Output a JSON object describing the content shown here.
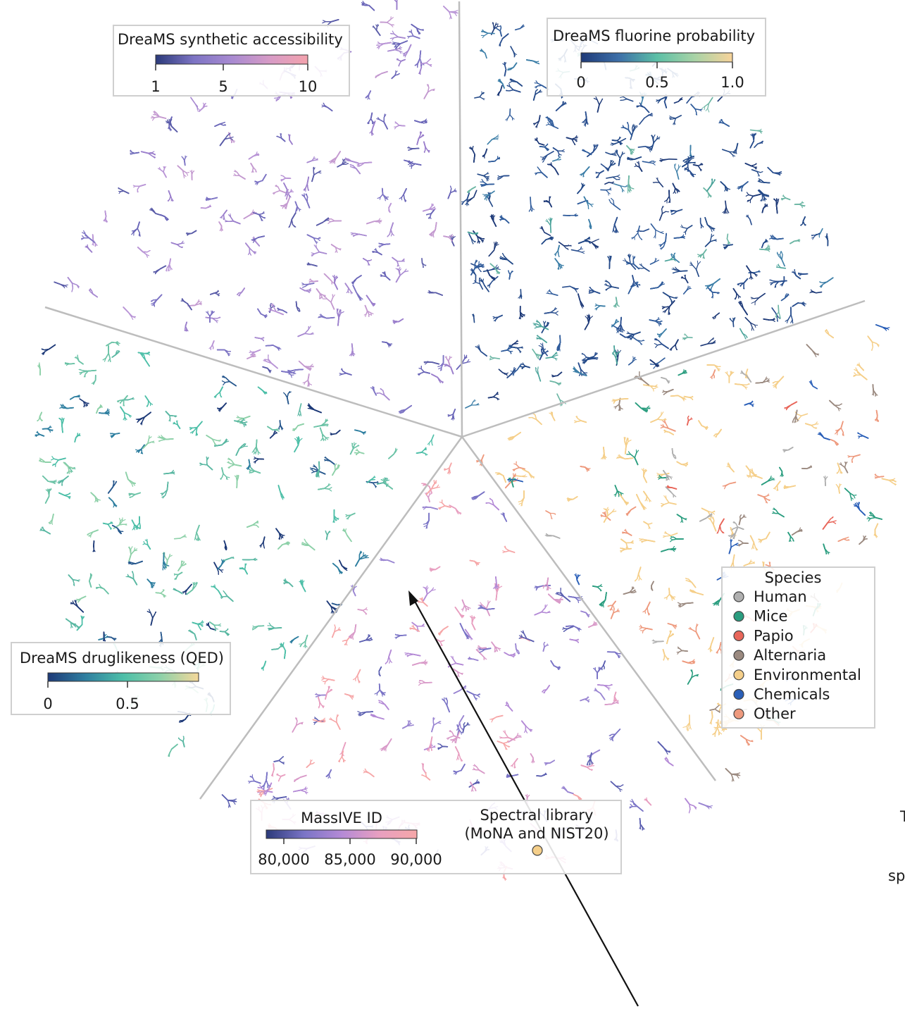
{
  "colors": {
    "synthetic_scale": [
      "#2b3a7a",
      "#7d74c4",
      "#a88ad1",
      "#d79bc6",
      "#f3a2ad"
    ],
    "fluorine_scale": [
      "#1e3a78",
      "#3d6fa8",
      "#5bbfa6",
      "#a8d3a6",
      "#f7d39a"
    ],
    "qed_scale": [
      "#1e3a78",
      "#2f7fa0",
      "#4dbfa8",
      "#8ed1a9",
      "#f5d89a"
    ],
    "massive_scale": [
      "#2b3a7a",
      "#7a74c6",
      "#b48ad6",
      "#e89fc0",
      "#f6a7a8"
    ],
    "divider": "#bdbdbd"
  },
  "legends": {
    "synthetic": {
      "title": "DreaMS synthetic accessibility",
      "ticks": [
        "1",
        "5",
        "10"
      ]
    },
    "fluorine": {
      "title": "DreaMS fluorine probability",
      "ticks": [
        "0",
        "0.5",
        "1.0"
      ]
    },
    "qed": {
      "title": "DreaMS druglikeness (QED)",
      "ticks": [
        "0",
        "0.5"
      ]
    },
    "massive": {
      "title": "MassIVE ID",
      "ticks": [
        "80,000",
        "85,000",
        "90,000"
      ],
      "spectral_title_line1": "Spectral library",
      "spectral_title_line2": "(MoNA and NIST20)",
      "spectral_color": "#f5cf8a"
    },
    "species": {
      "title": "Species",
      "items": [
        {
          "label": "Human",
          "color": "#b0b0b0"
        },
        {
          "label": "Mice",
          "color": "#2a9d7f"
        },
        {
          "label": "Papio",
          "color": "#e8665a"
        },
        {
          "label": "Alternaria",
          "color": "#9b8a80"
        },
        {
          "label": "Environmental",
          "color": "#f5cf8a"
        },
        {
          "label": "Chemicals",
          "color": "#2a5fb8"
        },
        {
          "label": "Other",
          "color": "#ee9a7e"
        }
      ]
    }
  },
  "edge_text": {
    "line1": "T",
    "line2": "sp"
  }
}
